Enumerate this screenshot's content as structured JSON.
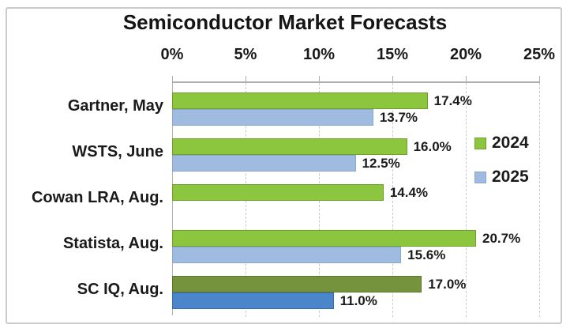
{
  "chart_data": {
    "type": "bar",
    "orientation": "horizontal",
    "title": "Semiconductor Market Forecasts",
    "categories": [
      "Gartner, May",
      "WSTS, June",
      "Cowan LRA, Aug.",
      "Statista, Aug.",
      "SC IQ, Aug."
    ],
    "series": [
      {
        "name": "2024",
        "values": [
          17.4,
          16.0,
          14.4,
          20.7,
          17.0
        ],
        "labels": [
          "17.4%",
          "16.0%",
          "14.4%",
          "20.7%",
          "17.0%"
        ],
        "colors": [
          "#8CC63F",
          "#8CC63F",
          "#8CC63F",
          "#8CC63F",
          "#75923C"
        ],
        "border_colors": [
          "#6FA02C",
          "#6FA02C",
          "#6FA02C",
          "#6FA02C",
          "#5C7530"
        ],
        "legend_color": "#8CC63F",
        "legend_border": "#6FA02C"
      },
      {
        "name": "2025",
        "values": [
          13.7,
          12.5,
          null,
          15.6,
          11.0
        ],
        "labels": [
          "13.7%",
          "12.5%",
          null,
          "15.6%",
          "11.0%"
        ],
        "colors": [
          "#9FBBDF",
          "#9FBBDF",
          null,
          "#9FBBDF",
          "#4B86CB"
        ],
        "border_colors": [
          "#88A8CF",
          "#88A8CF",
          null,
          "#88A8CF",
          "#3A6CAC"
        ],
        "legend_color": "#9FBBDF",
        "legend_border": "#88A8CF"
      }
    ],
    "x_ticks": [
      {
        "value": 0,
        "label": "0%"
      },
      {
        "value": 5,
        "label": "5%"
      },
      {
        "value": 10,
        "label": "10%"
      },
      {
        "value": 15,
        "label": "15%"
      },
      {
        "value": 20,
        "label": "20%"
      },
      {
        "value": 25,
        "label": "25%"
      }
    ],
    "xlim": [
      0,
      25
    ],
    "grid": "vertical-dashed",
    "legend_position": "right",
    "legend_entries": [
      "2024",
      "2025"
    ]
  },
  "colors": {
    "green_2024": "#8CC63F",
    "blue_2025": "#9FBBDF",
    "dark_green_sciq": "#75923C",
    "medium_blue_sciq": "#4B86CB",
    "axis_gray": "#aeaeae",
    "frame_gray": "#cacaca"
  }
}
